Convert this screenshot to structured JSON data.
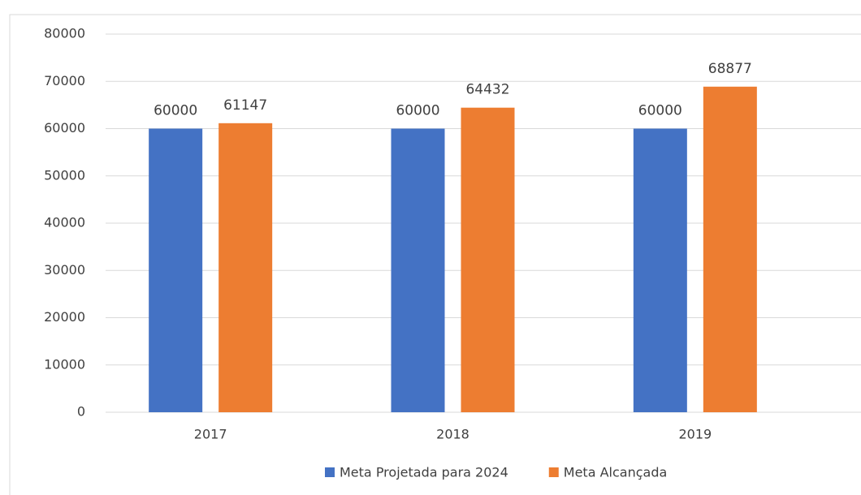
{
  "chart_data": {
    "type": "bar",
    "categories": [
      "2017",
      "2018",
      "2019"
    ],
    "series": [
      {
        "name": "Meta Projetada para 2024",
        "color": "#4472c4",
        "values": [
          60000,
          60000,
          60000
        ]
      },
      {
        "name": "Meta Alcançada",
        "color": "#ed7d31",
        "values": [
          61147,
          64432,
          68877
        ]
      }
    ],
    "ylim": [
      0,
      80000
    ],
    "yticks": [
      0,
      10000,
      20000,
      30000,
      40000,
      50000,
      60000,
      70000,
      80000
    ],
    "grid": true,
    "legend": "bottom"
  }
}
